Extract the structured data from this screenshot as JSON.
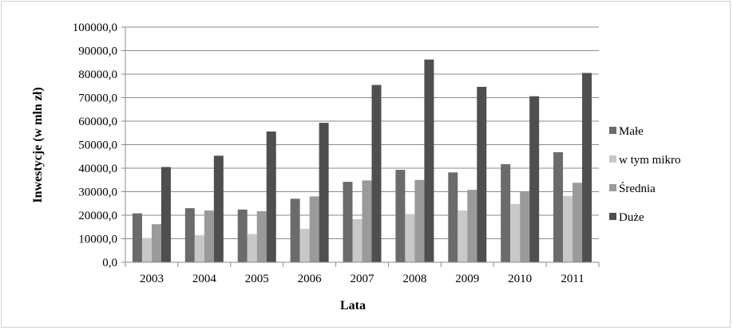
{
  "chart_data": {
    "type": "bar",
    "xlabel": "Lata",
    "ylabel": "Inwestycje (w mln zł)",
    "categories": [
      "2003",
      "2004",
      "2005",
      "2006",
      "2007",
      "2008",
      "2009",
      "2010",
      "2011"
    ],
    "ylim": [
      0,
      100000
    ],
    "yticks": [
      "0,0",
      "10000,0",
      "20000,0",
      "30000,0",
      "40000,0",
      "50000,0",
      "60000,0",
      "70000,0",
      "80000,0",
      "90000,0",
      "100000,0"
    ],
    "grid": true,
    "legend_position": "right",
    "series": [
      {
        "name": "Małe",
        "color": "#6b6b6b",
        "values": [
          20800,
          23000,
          22400,
          27000,
          34200,
          39300,
          38200,
          41700,
          46800
        ]
      },
      {
        "name": "w tym mikro",
        "color": "#c8c8c8",
        "values": [
          10300,
          11500,
          12000,
          14200,
          18300,
          20500,
          22000,
          24800,
          28200
        ]
      },
      {
        "name": "Średnia",
        "color": "#9a9a9a",
        "values": [
          16200,
          22000,
          21700,
          28000,
          34800,
          35000,
          30800,
          29800,
          33800
        ]
      },
      {
        "name": "Duże",
        "color": "#4f4f4f",
        "values": [
          40500,
          45300,
          55600,
          59300,
          75400,
          86200,
          74600,
          70600,
          80500
        ]
      }
    ]
  }
}
